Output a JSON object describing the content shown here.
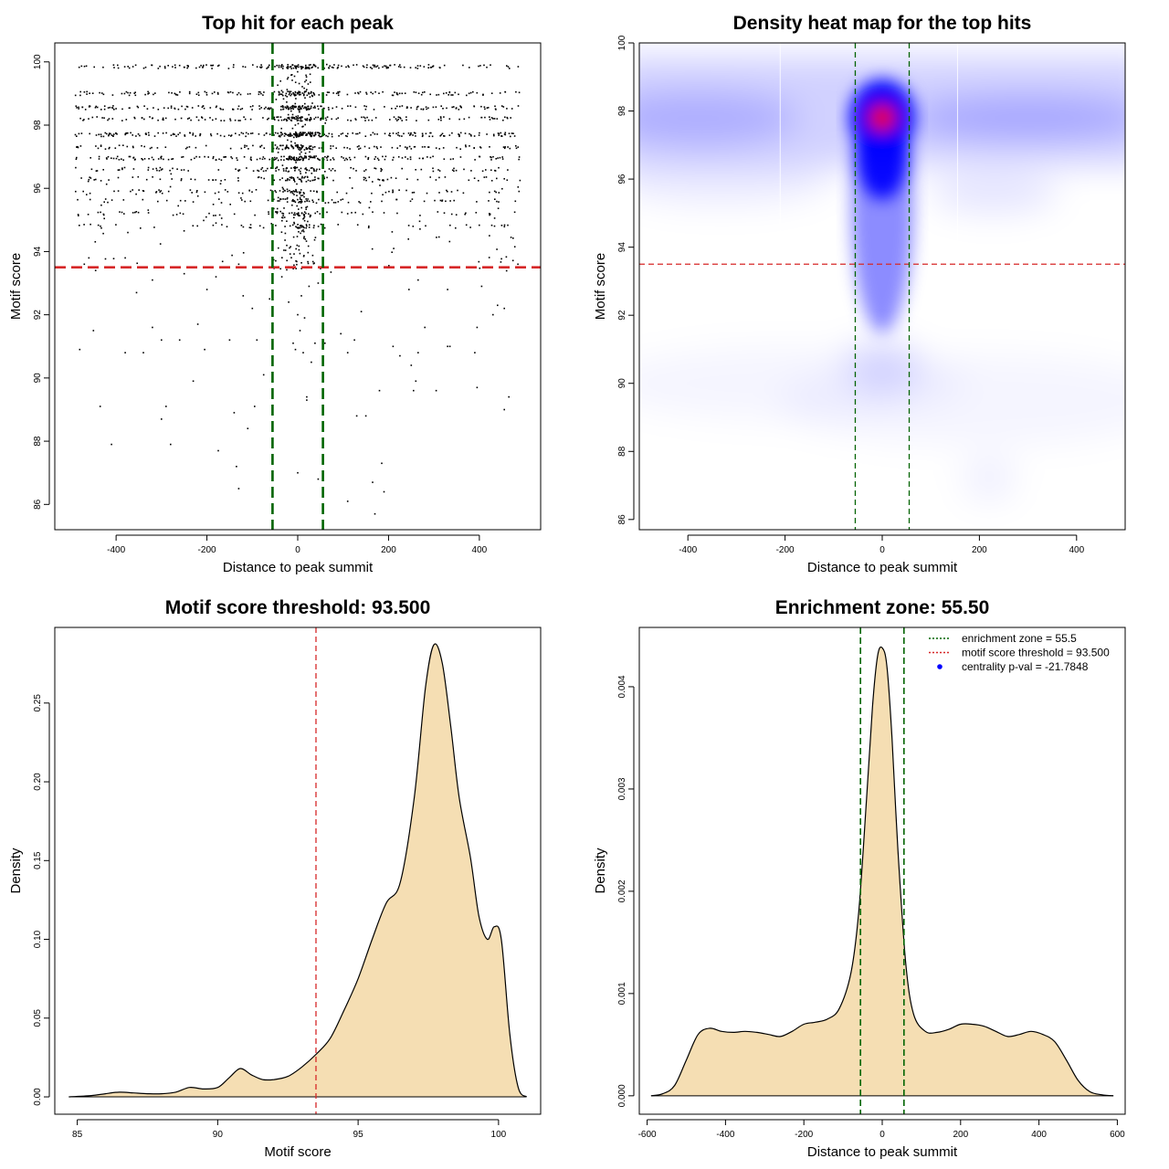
{
  "colors": {
    "threshold_line": "#d62728",
    "zone_line": "#006400",
    "density_fill": "#f5deb3",
    "heat_low": "#ffffff",
    "heat_mid": "#0000ff",
    "heat_high": "#ff0000",
    "legend_point": "#0000ff"
  },
  "chart_data": [
    {
      "type": "scatter",
      "title": "Top hit for each peak",
      "xlabel": "Distance to peak summit",
      "ylabel": "Motif score",
      "xlim": [
        -535,
        535
      ],
      "ylim": [
        85.2,
        100.6
      ],
      "xticks": [
        -400,
        -200,
        0,
        200,
        400
      ],
      "yticks": [
        86,
        88,
        90,
        92,
        94,
        96,
        98,
        100
      ],
      "xtick_labels": [
        "-400",
        "-200",
        "0",
        "200",
        "400"
      ],
      "ytick_labels": [
        "86",
        "88",
        "90",
        "92",
        "94",
        "96",
        "98",
        "100"
      ],
      "threshold_y": 93.5,
      "zone_x": [
        -55.5,
        55.5
      ],
      "score_levels": [
        99.85,
        99.0,
        98.55,
        98.2,
        97.7,
        97.3,
        96.95,
        96.6,
        96.3,
        95.9,
        95.6,
        95.2,
        94.8
      ],
      "sparse_points": [
        [
          -470,
          93.6
        ],
        [
          -445,
          93.4
        ],
        [
          -380,
          93.8
        ],
        [
          -320,
          93.1
        ],
        [
          -250,
          93.3
        ],
        [
          -180,
          93.2
        ],
        [
          -130,
          93.6
        ],
        [
          -120,
          92.6
        ],
        [
          -100,
          92.2
        ],
        [
          -90,
          91.2
        ],
        [
          -62,
          92.5
        ],
        [
          -35,
          93.2
        ],
        [
          -20,
          92.4
        ],
        [
          -10,
          91.1
        ],
        [
          -5,
          90.9
        ],
        [
          0,
          92.0
        ],
        [
          5,
          91.5
        ],
        [
          8,
          92.6
        ],
        [
          12,
          90.8
        ],
        [
          15,
          91.9
        ],
        [
          20,
          89.4
        ],
        [
          25,
          92.9
        ],
        [
          30,
          90.5
        ],
        [
          38,
          91.1
        ],
        [
          45,
          93.0
        ],
        [
          60,
          91.1
        ],
        [
          -200,
          92.8
        ],
        [
          -300,
          91.2
        ],
        [
          -450,
          91.5
        ],
        [
          -480,
          90.9
        ],
        [
          -380,
          90.8
        ],
        [
          -340,
          90.8
        ],
        [
          -320,
          91.6
        ],
        [
          -260,
          91.2
        ],
        [
          -220,
          91.7
        ],
        [
          -205,
          90.9
        ],
        [
          -150,
          91.2
        ],
        [
          -75,
          90.1
        ],
        [
          -230,
          89.9
        ],
        [
          -290,
          89.1
        ],
        [
          -300,
          88.7
        ],
        [
          -435,
          89.1
        ],
        [
          -410,
          87.9
        ],
        [
          -280,
          87.9
        ],
        [
          -175,
          87.7
        ],
        [
          -135,
          87.2
        ],
        [
          -140,
          88.9
        ],
        [
          -110,
          88.4
        ],
        [
          -95,
          89.1
        ],
        [
          -130,
          86.5
        ],
        [
          0,
          87.0
        ],
        [
          20,
          89.3
        ],
        [
          110,
          90.8
        ],
        [
          125,
          91.2
        ],
        [
          95,
          91.4
        ],
        [
          140,
          92.1
        ],
        [
          210,
          91.0
        ],
        [
          225,
          90.7
        ],
        [
          250,
          90.4
        ],
        [
          265,
          90.8
        ],
        [
          260,
          89.9
        ],
        [
          280,
          91.6
        ],
        [
          330,
          91.0
        ],
        [
          335,
          91.0
        ],
        [
          395,
          91.6
        ],
        [
          390,
          90.8
        ],
        [
          405,
          92.9
        ],
        [
          455,
          92.2
        ],
        [
          430,
          92.0
        ],
        [
          440,
          92.3
        ],
        [
          485,
          93.6
        ],
        [
          130,
          88.8
        ],
        [
          150,
          88.8
        ],
        [
          180,
          89.6
        ],
        [
          305,
          89.6
        ],
        [
          255,
          89.6
        ],
        [
          395,
          89.7
        ],
        [
          465,
          89.4
        ],
        [
          455,
          89.0
        ],
        [
          185,
          87.3
        ],
        [
          165,
          86.7
        ],
        [
          190,
          86.4
        ],
        [
          110,
          86.1
        ],
        [
          170,
          85.7
        ],
        [
          45,
          86.8
        ],
        [
          245,
          92.8
        ],
        [
          265,
          93.1
        ],
        [
          330,
          92.8
        ],
        [
          -460,
          93.8
        ],
        [
          -355,
          92.7
        ]
      ]
    },
    {
      "type": "heatmap",
      "title": "Density heat map for the top hits",
      "xlabel": "Distance to peak summit",
      "ylabel": "Motif score",
      "xlim": [
        -500,
        500
      ],
      "ylim": [
        85.7,
        100.0
      ],
      "xticks": [
        -400,
        -200,
        0,
        200,
        400
      ],
      "yticks": [
        86,
        88,
        90,
        92,
        94,
        96,
        98,
        100
      ],
      "xtick_labels": [
        "-400",
        "-200",
        "0",
        "200",
        "400"
      ],
      "ytick_labels": [
        "86",
        "88",
        "90",
        "92",
        "94",
        "96",
        "98",
        "100"
      ],
      "threshold_y": 93.5,
      "zone_x": [
        -55.5,
        55.5
      ],
      "peak": [
        0,
        97.8
      ]
    },
    {
      "type": "area",
      "title": "Motif score threshold: 93.500",
      "xlabel": "Motif score",
      "ylabel": "Density",
      "xlim": [
        84.2,
        101.5
      ],
      "ylim": [
        -0.011,
        0.298
      ],
      "xticks": [
        85,
        90,
        95,
        100
      ],
      "yticks": [
        0.0,
        0.05,
        0.1,
        0.15,
        0.2,
        0.25
      ],
      "xtick_labels": [
        "85",
        "90",
        "95",
        "100"
      ],
      "ytick_labels": [
        "0.00",
        "0.05",
        "0.10",
        "0.15",
        "0.20",
        "0.25"
      ],
      "threshold_x": 93.5,
      "x": [
        84.7,
        85.5,
        86.0,
        86.5,
        87.0,
        87.5,
        88.0,
        88.5,
        89.0,
        89.5,
        90.0,
        90.4,
        90.8,
        91.2,
        91.6,
        92.0,
        92.5,
        93.0,
        93.5,
        94.0,
        94.5,
        95.0,
        95.5,
        96.0,
        96.5,
        97.0,
        97.4,
        97.7,
        98.0,
        98.3,
        98.6,
        99.0,
        99.3,
        99.6,
        99.85,
        100.1,
        100.4,
        100.7,
        101.0
      ],
      "y": [
        0.0,
        0.0008,
        0.002,
        0.003,
        0.0025,
        0.002,
        0.002,
        0.003,
        0.006,
        0.005,
        0.006,
        0.012,
        0.018,
        0.014,
        0.011,
        0.011,
        0.013,
        0.019,
        0.027,
        0.037,
        0.055,
        0.075,
        0.1,
        0.123,
        0.136,
        0.19,
        0.26,
        0.287,
        0.275,
        0.235,
        0.19,
        0.152,
        0.115,
        0.1,
        0.108,
        0.1,
        0.04,
        0.006,
        0.0
      ]
    },
    {
      "type": "area",
      "title": "Enrichment zone: 55.50",
      "xlabel": "Distance to peak summit",
      "ylabel": "Density",
      "xlim": [
        -620,
        620
      ],
      "ylim": [
        -0.00018,
        0.00458
      ],
      "xticks": [
        -600,
        -400,
        -200,
        0,
        200,
        400,
        600
      ],
      "yticks": [
        0.0,
        0.001,
        0.002,
        0.003,
        0.004
      ],
      "xtick_labels": [
        "-600",
        "-400",
        "-200",
        "0",
        "200",
        "400",
        "600"
      ],
      "ytick_labels": [
        "0.000",
        "0.001",
        "0.002",
        "0.003",
        "0.004"
      ],
      "zone_x": [
        -55.5,
        55.5
      ],
      "x": [
        -590,
        -560,
        -530,
        -500,
        -470,
        -440,
        -410,
        -380,
        -350,
        -320,
        -290,
        -260,
        -230,
        -200,
        -170,
        -140,
        -110,
        -80,
        -60,
        -40,
        -25,
        -12,
        0,
        12,
        25,
        40,
        60,
        80,
        110,
        140,
        170,
        200,
        230,
        260,
        290,
        320,
        350,
        380,
        410,
        440,
        470,
        500,
        530,
        560,
        590
      ],
      "y": [
        0.0,
        2e-05,
        0.0001,
        0.00035,
        0.0006,
        0.00066,
        0.00063,
        0.00062,
        0.00063,
        0.00062,
        0.0006,
        0.00058,
        0.00063,
        0.0007,
        0.00072,
        0.00075,
        0.00085,
        0.0012,
        0.0018,
        0.0029,
        0.0038,
        0.0043,
        0.00438,
        0.0042,
        0.0035,
        0.0024,
        0.0013,
        0.0008,
        0.00063,
        0.00062,
        0.00065,
        0.0007,
        0.0007,
        0.00068,
        0.00063,
        0.00058,
        0.0006,
        0.00063,
        0.0006,
        0.00053,
        0.00035,
        0.00015,
        4e-05,
        1e-05,
        0.0
      ],
      "legend": [
        {
          "label": "enrichment zone = 55.5",
          "style": "dotted",
          "color": "#006400"
        },
        {
          "label": "motif score threshold = 93.500",
          "style": "dotted",
          "color": "#d62728"
        },
        {
          "label": "centrality p-val = -21.7848",
          "style": "point",
          "color": "#0000ff"
        }
      ],
      "legend_position": "top-right"
    }
  ]
}
